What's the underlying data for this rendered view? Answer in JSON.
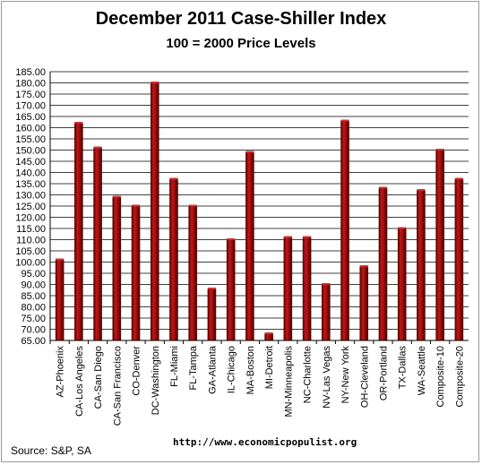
{
  "chart_data": {
    "type": "bar",
    "title": "December 2011 Case-Shiller Index",
    "subtitle": "100 = 2000 Price Levels",
    "categories": [
      "AZ-Phoenix",
      "CA-Los Angeles",
      "CA-San Diego",
      "CA-San Francisco",
      "CO-Denver",
      "DC-Washington",
      "FL-Miami",
      "FL-Tampa",
      "GA-Atlanta",
      "IL-Chicago",
      "MA-Boston",
      "MI-Detroit",
      "MN-Minneapolis",
      "NC-Charlotte",
      "NV-Las Vegas",
      "NY-New York",
      "OH-Cleveland",
      "OR-Portland",
      "TX-Dallas",
      "WA-Seattle",
      "Composite-10",
      "Composite-20"
    ],
    "values": [
      101,
      162,
      151,
      129,
      125,
      180,
      137,
      125,
      88,
      110,
      149,
      68,
      111,
      111,
      90,
      163,
      98,
      133,
      115,
      132,
      150,
      137
    ],
    "ylim": [
      65,
      185
    ],
    "ytick_step": 5,
    "ytick_labels": [
      "65.00",
      "70.00",
      "75.00",
      "80.00",
      "85.00",
      "90.00",
      "95.00",
      "100.00",
      "105.00",
      "110.00",
      "115.00",
      "120.00",
      "125.00",
      "130.00",
      "135.00",
      "140.00",
      "145.00",
      "150.00",
      "155.00",
      "160.00",
      "165.00",
      "170.00",
      "175.00",
      "180.00",
      "185.00"
    ],
    "xlabel": "",
    "ylabel": "",
    "grid": true,
    "bar_color": "#a50f0f",
    "bar_dark": "#5a0000"
  },
  "footer": {
    "source": "Source:  S&P, SA",
    "url": "http://www.economicpopulist.org"
  }
}
